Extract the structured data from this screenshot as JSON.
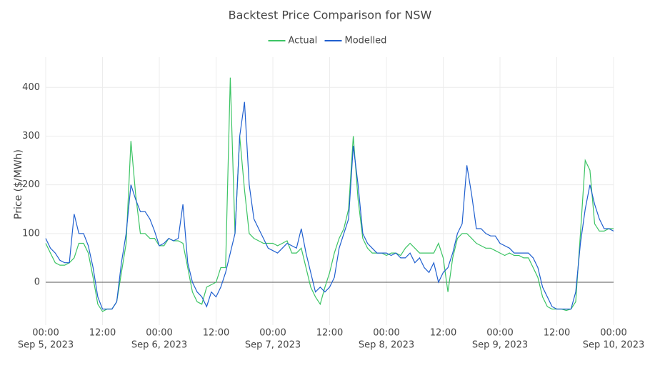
{
  "chart_data": {
    "type": "line",
    "title": "Backtest Price Comparison for NSW",
    "y_label": "Price ($/MWh)",
    "xlim": [
      "2023-09-05 00:00",
      "2023-09-10 00:00"
    ],
    "xticks": [
      {
        "value": "2023-09-05 00:00",
        "label": "00:00",
        "date": "Sep 5, 2023"
      },
      {
        "value": "2023-09-05 12:00",
        "label": "12:00"
      },
      {
        "value": "2023-09-06 00:00",
        "label": "00:00",
        "date": "Sep 6, 2023"
      },
      {
        "value": "2023-09-06 12:00",
        "label": "12:00"
      },
      {
        "value": "2023-09-07 00:00",
        "label": "00:00",
        "date": "Sep 7, 2023"
      },
      {
        "value": "2023-09-07 12:00",
        "label": "12:00"
      },
      {
        "value": "2023-09-08 00:00",
        "label": "00:00",
        "date": "Sep 8, 2023"
      },
      {
        "value": "2023-09-08 12:00",
        "label": "12:00"
      },
      {
        "value": "2023-09-09 00:00",
        "label": "00:00",
        "date": "Sep 9, 2023"
      },
      {
        "value": "2023-09-09 12:00",
        "label": "12:00"
      },
      {
        "value": "2023-09-10 00:00",
        "label": "00:00",
        "date": "Sep 10, 2023"
      }
    ],
    "ylim": [
      -88,
      462
    ],
    "yticks": [
      0,
      100,
      200,
      300,
      400
    ],
    "grid": true,
    "zeroline": true,
    "legend": "top",
    "x": [
      "2023-09-05 00:00",
      "2023-09-05 01:00",
      "2023-09-05 02:00",
      "2023-09-05 03:00",
      "2023-09-05 04:00",
      "2023-09-05 05:00",
      "2023-09-05 06:00",
      "2023-09-05 07:00",
      "2023-09-05 08:00",
      "2023-09-05 09:00",
      "2023-09-05 10:00",
      "2023-09-05 11:00",
      "2023-09-05 12:00",
      "2023-09-05 13:00",
      "2023-09-05 14:00",
      "2023-09-05 15:00",
      "2023-09-05 16:00",
      "2023-09-05 17:00",
      "2023-09-05 18:00",
      "2023-09-05 19:00",
      "2023-09-05 20:00",
      "2023-09-05 21:00",
      "2023-09-05 22:00",
      "2023-09-05 23:00",
      "2023-09-06 00:00",
      "2023-09-06 01:00",
      "2023-09-06 02:00",
      "2023-09-06 03:00",
      "2023-09-06 04:00",
      "2023-09-06 05:00",
      "2023-09-06 06:00",
      "2023-09-06 07:00",
      "2023-09-06 08:00",
      "2023-09-06 09:00",
      "2023-09-06 10:00",
      "2023-09-06 11:00",
      "2023-09-06 12:00",
      "2023-09-06 13:00",
      "2023-09-06 14:00",
      "2023-09-06 15:00",
      "2023-09-06 16:00",
      "2023-09-06 17:00",
      "2023-09-06 18:00",
      "2023-09-06 19:00",
      "2023-09-06 20:00",
      "2023-09-06 21:00",
      "2023-09-06 22:00",
      "2023-09-06 23:00",
      "2023-09-07 00:00",
      "2023-09-07 01:00",
      "2023-09-07 02:00",
      "2023-09-07 03:00",
      "2023-09-07 04:00",
      "2023-09-07 05:00",
      "2023-09-07 06:00",
      "2023-09-07 07:00",
      "2023-09-07 08:00",
      "2023-09-07 09:00",
      "2023-09-07 10:00",
      "2023-09-07 11:00",
      "2023-09-07 12:00",
      "2023-09-07 13:00",
      "2023-09-07 14:00",
      "2023-09-07 15:00",
      "2023-09-07 16:00",
      "2023-09-07 17:00",
      "2023-09-07 18:00",
      "2023-09-07 19:00",
      "2023-09-07 20:00",
      "2023-09-07 21:00",
      "2023-09-07 22:00",
      "2023-09-07 23:00",
      "2023-09-08 00:00",
      "2023-09-08 01:00",
      "2023-09-08 02:00",
      "2023-09-08 03:00",
      "2023-09-08 04:00",
      "2023-09-08 05:00",
      "2023-09-08 06:00",
      "2023-09-08 07:00",
      "2023-09-08 08:00",
      "2023-09-08 09:00",
      "2023-09-08 10:00",
      "2023-09-08 11:00",
      "2023-09-08 12:00",
      "2023-09-08 13:00",
      "2023-09-08 14:00",
      "2023-09-08 15:00",
      "2023-09-08 16:00",
      "2023-09-08 17:00",
      "2023-09-08 18:00",
      "2023-09-08 19:00",
      "2023-09-08 20:00",
      "2023-09-08 21:00",
      "2023-09-08 22:00",
      "2023-09-08 23:00",
      "2023-09-09 00:00",
      "2023-09-09 01:00",
      "2023-09-09 02:00",
      "2023-09-09 03:00",
      "2023-09-09 04:00",
      "2023-09-09 05:00",
      "2023-09-09 06:00",
      "2023-09-09 07:00",
      "2023-09-09 08:00",
      "2023-09-09 09:00",
      "2023-09-09 10:00",
      "2023-09-09 11:00",
      "2023-09-09 12:00",
      "2023-09-09 13:00",
      "2023-09-09 14:00",
      "2023-09-09 15:00",
      "2023-09-09 16:00",
      "2023-09-09 17:00",
      "2023-09-09 18:00",
      "2023-09-09 19:00",
      "2023-09-09 20:00",
      "2023-09-09 21:00",
      "2023-09-09 22:00",
      "2023-09-09 23:00",
      "2023-09-10 00:00"
    ],
    "series": [
      {
        "name": "Actual",
        "color": "#3cc464",
        "values": [
          80,
          60,
          40,
          35,
          35,
          40,
          50,
          80,
          80,
          60,
          10,
          -45,
          -60,
          -55,
          -55,
          -40,
          20,
          80,
          290,
          180,
          100,
          100,
          90,
          90,
          75,
          75,
          90,
          85,
          85,
          80,
          30,
          -20,
          -40,
          -45,
          -10,
          -5,
          0,
          30,
          30,
          420,
          100,
          300,
          190,
          100,
          90,
          85,
          80,
          80,
          80,
          75,
          80,
          85,
          60,
          60,
          70,
          30,
          -10,
          -30,
          -45,
          -10,
          20,
          60,
          90,
          110,
          150,
          300,
          170,
          90,
          70,
          60,
          60,
          60,
          55,
          60,
          60,
          55,
          70,
          80,
          70,
          60,
          60,
          60,
          60,
          80,
          50,
          -20,
          50,
          90,
          100,
          100,
          90,
          80,
          75,
          70,
          70,
          65,
          60,
          55,
          60,
          55,
          55,
          50,
          50,
          30,
          10,
          -30,
          -50,
          -55,
          -55,
          -55,
          -58,
          -55,
          -40,
          100,
          250,
          230,
          120,
          105,
          105,
          110,
          110
        ]
      },
      {
        "name": "Modelled",
        "color": "#1f5fcf",
        "values": [
          90,
          70,
          60,
          45,
          40,
          40,
          140,
          100,
          100,
          75,
          30,
          -30,
          -55,
          -55,
          -55,
          -40,
          40,
          100,
          200,
          170,
          145,
          145,
          130,
          105,
          75,
          80,
          90,
          85,
          90,
          160,
          40,
          0,
          -20,
          -30,
          -50,
          -20,
          -30,
          -10,
          20,
          60,
          100,
          300,
          370,
          200,
          130,
          110,
          90,
          70,
          65,
          60,
          70,
          80,
          75,
          70,
          110,
          60,
          20,
          -20,
          -10,
          -20,
          -10,
          10,
          70,
          100,
          130,
          280,
          200,
          100,
          80,
          70,
          60,
          60,
          60,
          55,
          60,
          50,
          50,
          60,
          40,
          50,
          30,
          20,
          40,
          0,
          20,
          30,
          60,
          100,
          120,
          240,
          180,
          110,
          110,
          100,
          95,
          95,
          80,
          75,
          70,
          60,
          60,
          60,
          60,
          50,
          30,
          -10,
          -30,
          -50,
          -55,
          -55,
          -55,
          -55,
          -20,
          80,
          150,
          200,
          160,
          130,
          110,
          110,
          105
        ]
      }
    ]
  }
}
